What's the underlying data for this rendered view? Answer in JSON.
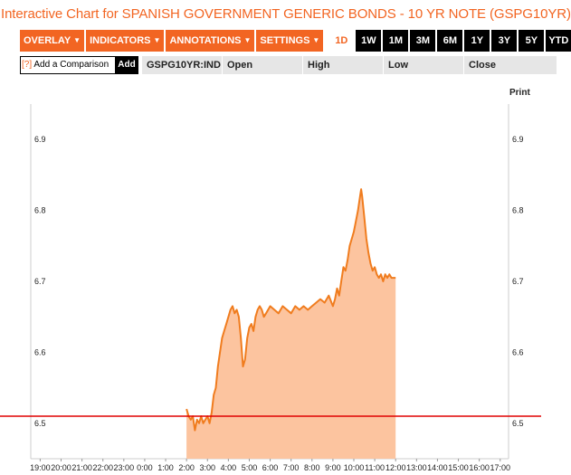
{
  "title": "Interactive Chart for SPANISH GOVERNMENT GENERIC BONDS - 10 YR NOTE (GSPG10YR)",
  "toolbar": {
    "menus": [
      "OVERLAY",
      "INDICATORS",
      "ANNOTATIONS",
      "SETTINGS"
    ],
    "caret": "▼",
    "ranges": [
      "1D",
      "1W",
      "1M",
      "3M",
      "6M",
      "1Y",
      "3Y",
      "5Y",
      "YTD"
    ],
    "active_range": "1D"
  },
  "quote_bar": {
    "compare_bracket": "[?]",
    "compare_label": "Add a Comparison",
    "add_label": "Add",
    "ticker": "GSPG10YR:IND",
    "open_label": "Open",
    "high_label": "High",
    "low_label": "Low",
    "close_label": "Close"
  },
  "print_label": "Print",
  "colors": {
    "brand_orange": "#f26522",
    "line": "#f07c1e",
    "fill": "#fcc49f",
    "reference_line": "#e00000",
    "grid": "#cccccc"
  },
  "chart_data": {
    "type": "area",
    "title": "",
    "xlabel": "",
    "ylabel": "",
    "ylim": [
      6.45,
      6.95
    ],
    "y_ticks": [
      "6.5",
      "6.6",
      "6.7",
      "6.8",
      "6.9"
    ],
    "y_tick_values": [
      6.5,
      6.6,
      6.7,
      6.8,
      6.9
    ],
    "x_ticks": [
      "19:00",
      "20:00",
      "21:00",
      "22:00",
      "23:00",
      "0:00",
      "1:00",
      "2:00",
      "3:00",
      "4:00",
      "5:00",
      "6:00",
      "7:00",
      "8:00",
      "9:00",
      "10:00",
      "11:00",
      "12:00",
      "13:00",
      "14:00",
      "15:00",
      "16:00",
      "17:00"
    ],
    "x_tick_hours": [
      -5,
      -4,
      -3,
      -2,
      -1,
      0,
      1,
      2,
      3,
      4,
      5,
      6,
      7,
      8,
      9,
      10,
      11,
      12,
      13,
      14,
      15,
      16,
      17
    ],
    "xlim_hours": [
      -5.45,
      17.4
    ],
    "reference_value": 6.51,
    "grid": false,
    "series": [
      {
        "x_hours": [
          2.0,
          2.05,
          2.1,
          2.2,
          2.3,
          2.4,
          2.5,
          2.6,
          2.7,
          2.8,
          2.9,
          3.0,
          3.1,
          3.2,
          3.3,
          3.4,
          3.5,
          3.6,
          3.7,
          3.8,
          3.9,
          4.0,
          4.1,
          4.2,
          4.3,
          4.4,
          4.5,
          4.6,
          4.7,
          4.8,
          4.9,
          5.0,
          5.1,
          5.2,
          5.3,
          5.4,
          5.5,
          5.6,
          5.7,
          5.8,
          5.9,
          6.0,
          6.2,
          6.4,
          6.6,
          6.8,
          7.0,
          7.2,
          7.4,
          7.6,
          7.8,
          8.0,
          8.2,
          8.4,
          8.6,
          8.8,
          9.0,
          9.1,
          9.2,
          9.3,
          9.4,
          9.5,
          9.6,
          9.7,
          9.8,
          9.9,
          10.0,
          10.1,
          10.2,
          10.3,
          10.35,
          10.4,
          10.5,
          10.6,
          10.7,
          10.8,
          10.9,
          11.0,
          11.1,
          11.2,
          11.3,
          11.4,
          11.5,
          11.6,
          11.7,
          11.8,
          11.9,
          12.0
        ],
        "values": [
          6.52,
          6.515,
          6.51,
          6.505,
          6.51,
          6.49,
          6.505,
          6.5,
          6.51,
          6.5,
          6.505,
          6.51,
          6.5,
          6.515,
          6.54,
          6.55,
          6.58,
          6.6,
          6.62,
          6.63,
          6.64,
          6.65,
          6.66,
          6.665,
          6.655,
          6.66,
          6.65,
          6.62,
          6.58,
          6.59,
          6.62,
          6.635,
          6.64,
          6.63,
          6.65,
          6.66,
          6.665,
          6.66,
          6.65,
          6.655,
          6.66,
          6.665,
          6.66,
          6.655,
          6.665,
          6.66,
          6.655,
          6.665,
          6.66,
          6.665,
          6.66,
          6.665,
          6.67,
          6.675,
          6.67,
          6.68,
          6.665,
          6.675,
          6.69,
          6.68,
          6.7,
          6.72,
          6.715,
          6.73,
          6.75,
          6.76,
          6.77,
          6.785,
          6.8,
          6.82,
          6.83,
          6.82,
          6.79,
          6.76,
          6.74,
          6.725,
          6.715,
          6.72,
          6.71,
          6.705,
          6.71,
          6.7,
          6.71,
          6.705,
          6.71,
          6.705,
          6.705,
          6.705
        ]
      }
    ]
  }
}
